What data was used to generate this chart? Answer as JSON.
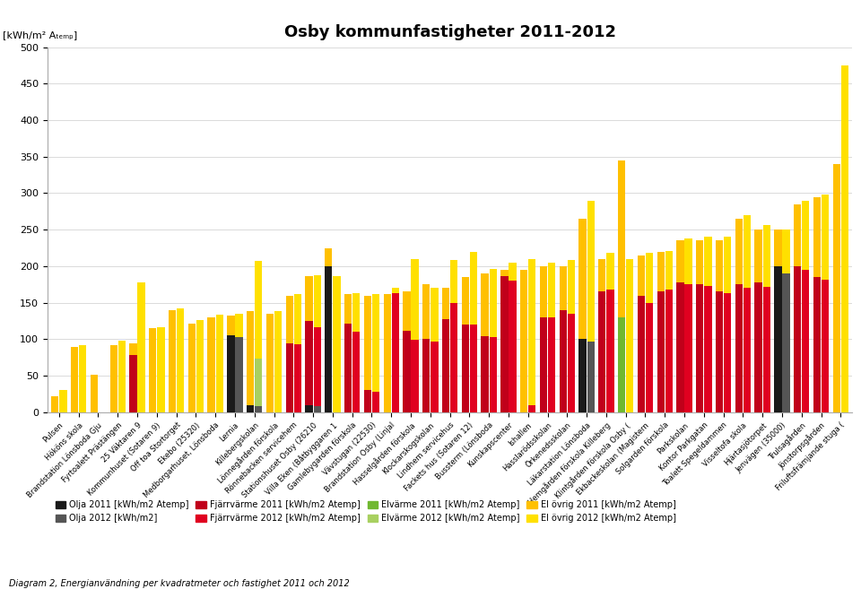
{
  "title": "Osby kommunfastigheter 2011-2012",
  "ylabel": "[kWh/m² Aₜₑₘₚ]",
  "ylim": [
    0,
    500
  ],
  "yticks": [
    0,
    50,
    100,
    150,
    200,
    250,
    300,
    350,
    400,
    450,
    500
  ],
  "categories": [
    "Pulsen",
    "Hököns skola",
    "Brandstation Lönsboda Gju",
    "Fyrtoalett Prästängen",
    "25 Väktaren 9",
    "Kommunhuset (Sotaren 9)",
    "Off toa Stortorget",
    "Ekebo (25320)",
    "Medborgarhuset, Lönsboda",
    "Lernia",
    "Killebergskolan",
    "Lönnegården förskola",
    "Rönnebacken servicehem",
    "Stationshuset Osby (26210",
    "Villa Eken (Båtbyggaren 1",
    "Gamlebygarden förskola",
    "Vävstugan (22530)",
    "Brandstation Osby (Linjal",
    "Hasselgården förskola",
    "Klockarskogskolan",
    "Lindhem servicehus",
    "Fackets hus (Sotaren 12)",
    "Bussterm (Lönsboda",
    "Kunskapscenter",
    "Ishallen",
    "Hasslarödsskolan",
    "Örkenedsskolan",
    "Läkarstation Lönsboda",
    "Hemgården förskola Killeberg",
    "Klintgården förskola Osby (",
    "Ekbackeskolan (Magistern",
    "Solgarden förskola",
    "Parkskolan",
    "Kontor Parkgatan",
    "Toalett Spegeldammen",
    "Visseltofa skola",
    "Hjärtasjötorpet",
    "Jenvägen (35000)",
    "Trulsagården",
    "Jönstorpsgården",
    "Friluftsfrämjande stuga ("
  ],
  "series": {
    "olja_2011": [
      0,
      0,
      0,
      0,
      0,
      0,
      0,
      0,
      0,
      105,
      10,
      0,
      0,
      10,
      200,
      0,
      0,
      0,
      0,
      0,
      0,
      0,
      0,
      0,
      0,
      0,
      0,
      100,
      0,
      0,
      0,
      0,
      0,
      0,
      0,
      0,
      0,
      200,
      0,
      0,
      0
    ],
    "olja_2012": [
      0,
      0,
      0,
      0,
      0,
      0,
      0,
      0,
      0,
      103,
      8,
      0,
      0,
      8,
      0,
      0,
      0,
      0,
      0,
      0,
      0,
      0,
      0,
      0,
      0,
      0,
      0,
      97,
      0,
      0,
      0,
      0,
      0,
      0,
      0,
      0,
      0,
      190,
      0,
      0,
      0
    ],
    "elvarme_2011": [
      0,
      0,
      0,
      0,
      0,
      0,
      0,
      0,
      0,
      0,
      0,
      0,
      0,
      0,
      0,
      0,
      0,
      0,
      0,
      0,
      0,
      0,
      0,
      0,
      0,
      0,
      0,
      0,
      0,
      130,
      0,
      0,
      0,
      0,
      0,
      0,
      0,
      0,
      0,
      0,
      0
    ],
    "elvarme_2012": [
      0,
      0,
      0,
      0,
      0,
      0,
      0,
      0,
      0,
      0,
      65,
      0,
      0,
      0,
      0,
      0,
      0,
      0,
      0,
      0,
      0,
      0,
      0,
      0,
      0,
      0,
      0,
      0,
      0,
      0,
      0,
      0,
      0,
      0,
      0,
      0,
      0,
      0,
      0,
      0,
      0
    ],
    "fjarrvarme_2011": [
      0,
      0,
      0,
      0,
      78,
      0,
      0,
      0,
      0,
      0,
      0,
      0,
      95,
      115,
      0,
      122,
      30,
      0,
      111,
      100,
      127,
      120,
      104,
      186,
      0,
      130,
      140,
      0,
      165,
      0,
      160,
      165,
      178,
      175,
      165,
      175,
      178,
      0,
      200,
      185,
      0
    ],
    "fjarrvarme_2012": [
      0,
      0,
      0,
      0,
      0,
      0,
      0,
      0,
      0,
      0,
      0,
      0,
      93,
      108,
      0,
      110,
      28,
      163,
      99,
      97,
      150,
      120,
      103,
      180,
      10,
      130,
      135,
      0,
      168,
      0,
      150,
      168,
      175,
      173,
      163,
      170,
      172,
      0,
      195,
      182,
      0
    ],
    "el_ovrig_2011": [
      22,
      90,
      52,
      92,
      17,
      115,
      140,
      122,
      130,
      27,
      128,
      135,
      65,
      62,
      24,
      40,
      130,
      162,
      55,
      75,
      43,
      65,
      86,
      9,
      195,
      70,
      60,
      165,
      45,
      215,
      55,
      55,
      57,
      60,
      70,
      90,
      72,
      50,
      85,
      110,
      340
    ],
    "el_ovrig_2012": [
      30,
      92,
      0,
      98,
      178,
      117,
      142,
      126,
      134,
      32,
      134,
      138,
      69,
      72,
      186,
      53,
      134,
      7,
      111,
      73,
      59,
      100,
      93,
      25,
      200,
      75,
      74,
      192,
      50,
      210,
      68,
      53,
      63,
      67,
      77,
      100,
      84,
      60,
      95,
      116,
      475
    ]
  },
  "colors": {
    "olja_2011": "#1a1a1a",
    "olja_2012": "#555555",
    "elvarme_2011": "#70b830",
    "elvarme_2012": "#a8d060",
    "fjarrvarme_2011": "#c0001a",
    "fjarrvarme_2012": "#e00020",
    "el_ovrig_2011": "#ffc000",
    "el_ovrig_2012": "#ffe000"
  },
  "legend_labels": [
    "Olja 2011 [kWh/m2 Atemp]",
    "Olja 2012 [kWh/m2]",
    "Fjärrvärme 2011 [kWh/m2 Atemp]",
    "Fjärrvärme 2012 [kWh/m2 Atemp]",
    "Elvärme 2011 [kWh/m2 Atemp]",
    "Elvärme 2012 [kWh/m2 Atemp]",
    "El övrig 2011 [kWh/m2 Atemp]",
    "El övrig 2012 [kWh/m2 Atemp]"
  ],
  "footnote": "Diagram 2, Energianvändning per kvadratmeter och fastighet 2011 och 2012"
}
